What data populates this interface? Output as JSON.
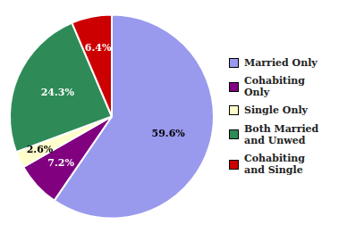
{
  "chart_data": {
    "type": "pie",
    "categories": [
      "Married Only",
      "Cohabiting\nOnly",
      "Single Only",
      "Both Married\nand Unwed",
      "Cohabiting\nand Single"
    ],
    "values": [
      59.6,
      7.2,
      2.6,
      24.3,
      6.4
    ],
    "value_labels": [
      "59.6%",
      "7.2%",
      "2.6%",
      "24.3%",
      "6.4%"
    ],
    "colors": [
      "#9999ee",
      "#800080",
      "#ffffcc",
      "#2e8b57",
      "#cc0000"
    ],
    "data_labels": true,
    "legend": "right"
  }
}
